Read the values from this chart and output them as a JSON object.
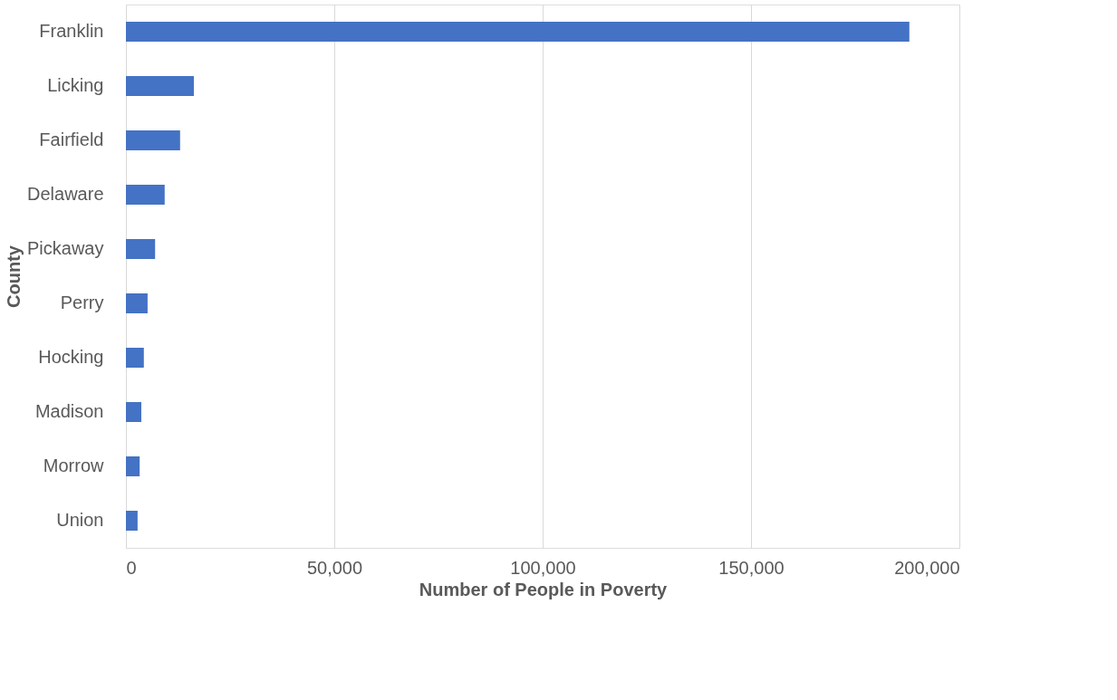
{
  "chart_data": {
    "type": "bar",
    "orientation": "horizontal",
    "categories": [
      "Franklin",
      "Licking",
      "Fairfield",
      "Delaware",
      "Pickaway",
      "Perry",
      "Hocking",
      "Madison",
      "Morrow",
      "Union"
    ],
    "values": [
      188000,
      16300,
      13000,
      9300,
      7000,
      5200,
      4300,
      3700,
      3300,
      2800
    ],
    "color": "#4472c4",
    "xlim": [
      0,
      200000
    ],
    "xticks": [
      {
        "value": 0,
        "label": "0"
      },
      {
        "value": 50000,
        "label": "50,000"
      },
      {
        "value": 100000,
        "label": "100,000"
      },
      {
        "value": 150000,
        "label": "150,000"
      },
      {
        "value": 200000,
        "label": "200,000"
      }
    ],
    "xlabel": "Number of People in Poverty",
    "ylabel": "County",
    "grid": "x"
  }
}
